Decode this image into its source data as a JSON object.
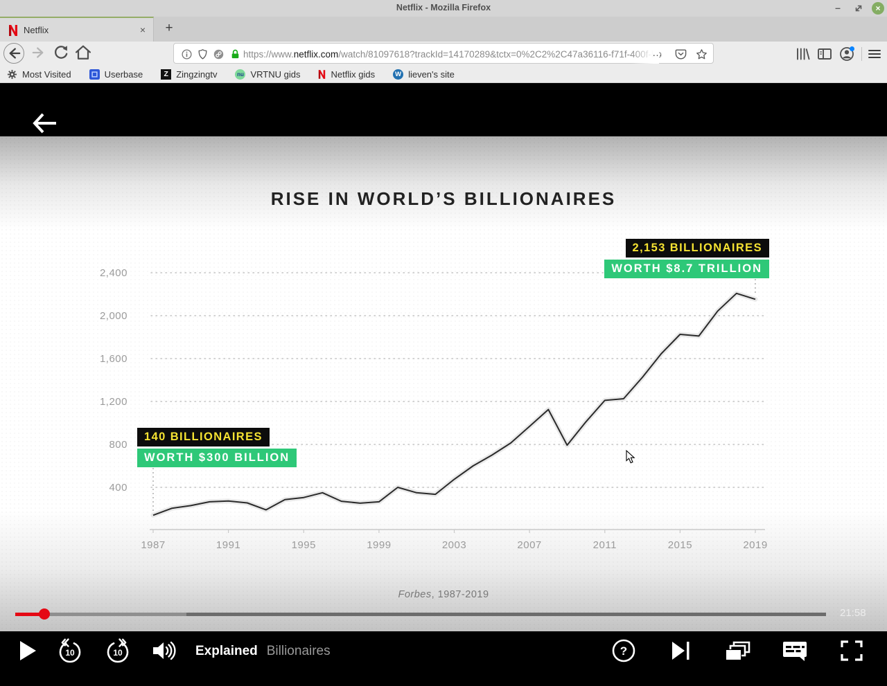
{
  "window": {
    "title": "Netflix - Mozilla Firefox",
    "minimize_glyph": "–",
    "close_glyph": "×"
  },
  "tabs": {
    "active_title": "Netflix",
    "close_glyph": "×",
    "new_tab_glyph": "+"
  },
  "urlbar": {
    "url_prefix": "https://www.",
    "url_domain": "netflix.com",
    "url_path": "/watch/81097618?trackId=14170289&tctx=0%2C2%2C47a36116-f71f-400f-bb",
    "page_actions_glyph": "…"
  },
  "bookmarks": {
    "items": [
      {
        "label": "Most Visited"
      },
      {
        "label": "Userbase"
      },
      {
        "label": "Zingzingtv"
      },
      {
        "label": "VRTNU gids"
      },
      {
        "label": "Netflix gids"
      },
      {
        "label": "lieven's site"
      }
    ],
    "badges": {
      "zingzing": "Z",
      "vrtnu": "nu",
      "wordpress": "W"
    }
  },
  "player": {
    "series_title": "Explained",
    "episode_title": "Billionaires",
    "time_remaining": "21:58",
    "skip_back_label": "10",
    "skip_forward_label": "10",
    "help_glyph": "?",
    "progress": {
      "track_start_pct": 1.7,
      "played_pct": 5.0,
      "buffered_pct": 21.0,
      "track_end_pct": 93.1
    }
  },
  "chart_data": {
    "type": "line",
    "title": "RISE IN WORLD’S BILLIONAIRES",
    "xlabel": "",
    "ylabel": "",
    "x": [
      1987,
      1988,
      1989,
      1990,
      1991,
      1992,
      1993,
      1994,
      1995,
      1996,
      1997,
      1998,
      1999,
      2000,
      2001,
      2002,
      2003,
      2004,
      2005,
      2006,
      2007,
      2008,
      2009,
      2010,
      2011,
      2012,
      2013,
      2014,
      2015,
      2016,
      2017,
      2018,
      2019
    ],
    "values": [
      140,
      205,
      230,
      265,
      272,
      255,
      190,
      285,
      305,
      350,
      270,
      252,
      265,
      400,
      350,
      335,
      475,
      600,
      700,
      813,
      968,
      1125,
      793,
      1011,
      1210,
      1226,
      1426,
      1645,
      1826,
      1810,
      2043,
      2208,
      2153
    ],
    "xticks": [
      1987,
      1991,
      1995,
      1999,
      2003,
      2007,
      2011,
      2015,
      2019
    ],
    "yticks": [
      400,
      800,
      1200,
      1600,
      2000,
      2400
    ],
    "ylim": [
      0,
      2500
    ],
    "grid": "horizontal-dotted",
    "legend": "none",
    "source_italic": "Forbes",
    "source_rest": ", 1987-2019",
    "annotations": [
      {
        "year": 1987,
        "value": 140,
        "line1": "140 BILLIONAIRES",
        "line2": "WORTH $300 BILLION"
      },
      {
        "year": 2019,
        "value": 2153,
        "line1": "2,153  BILLIONAIRES",
        "line2": "WORTH $8.7 TRILLION"
      }
    ],
    "colors": {
      "line": "#2b2b2b",
      "line_glow": "#e9e9e9",
      "callout_black_bg": "#0c0c0c",
      "callout_yellow_text": "#f5e232",
      "callout_green_bg": "#2ec878",
      "callout_white_text": "#ffffff",
      "axis_text": "#9b9b9b",
      "progress_red": "#e50914"
    }
  }
}
